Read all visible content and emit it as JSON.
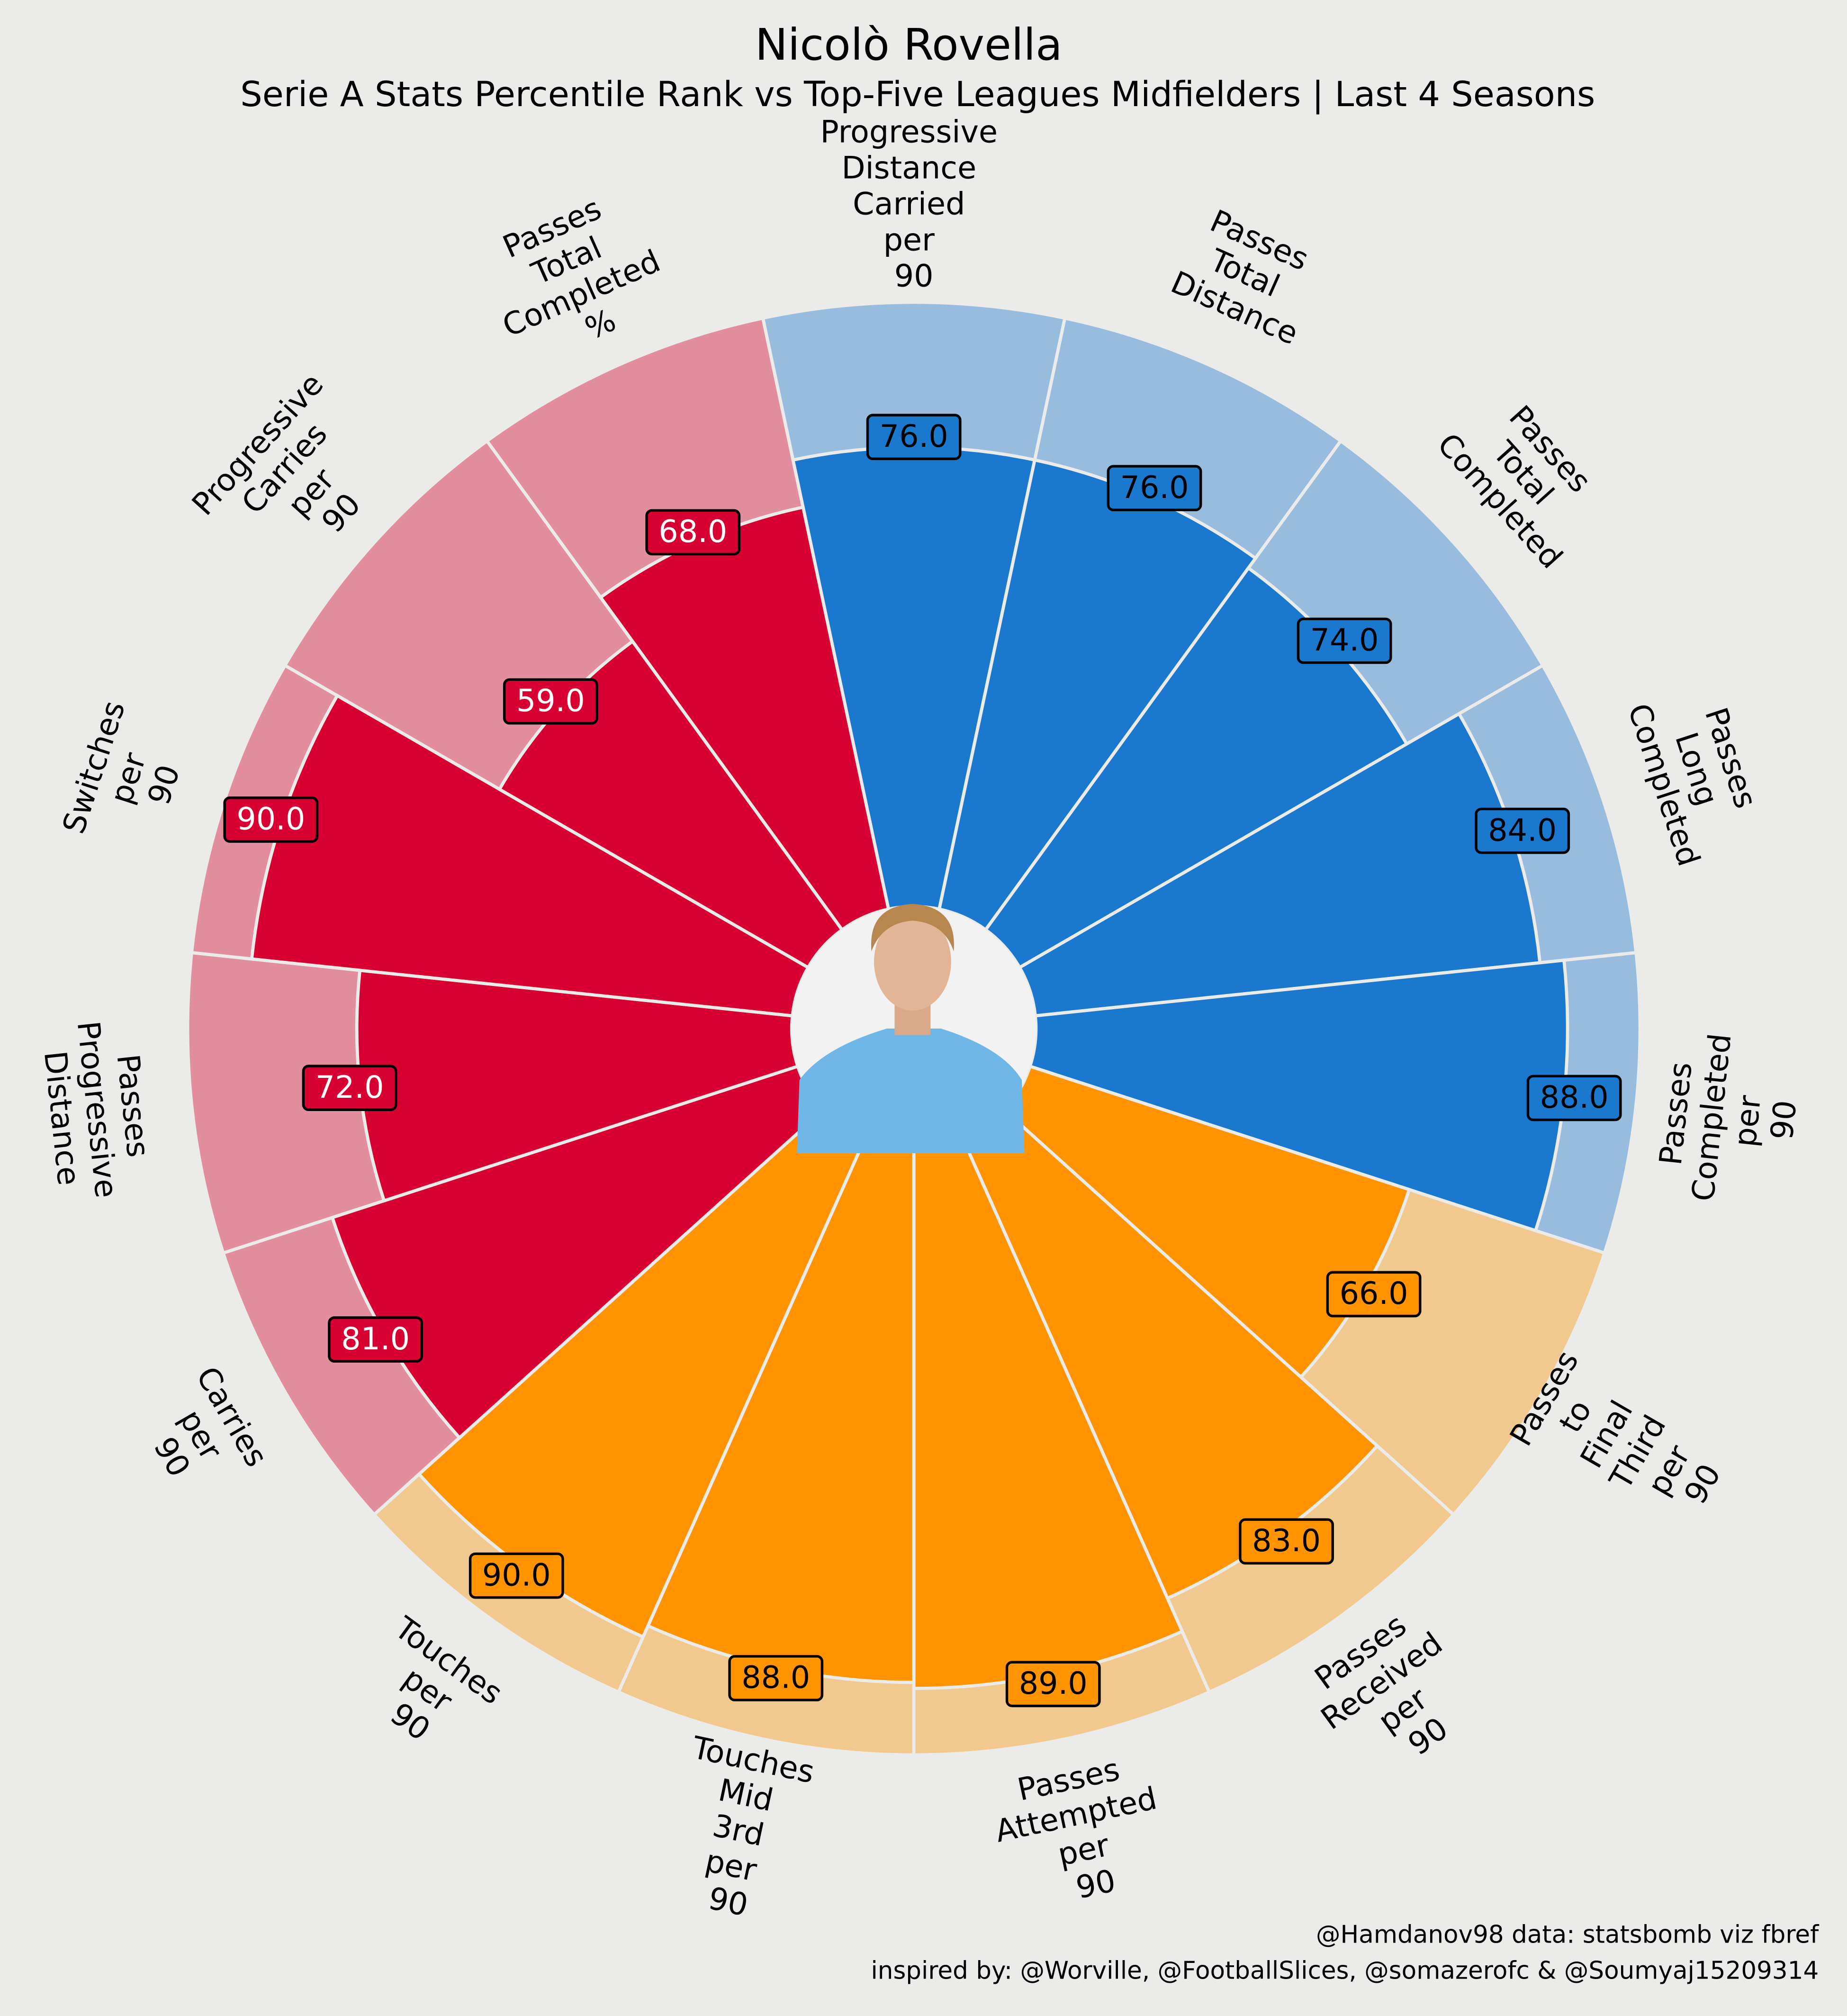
{
  "chart_data": {
    "type": "pizza",
    "title": "Nicolò Rovella",
    "subtitle": "Serie A Stats Percentile Rank vs Top-Five Leagues Midfielders | Last 4 Seasons",
    "categories": [
      "Progressive Distance Carried per 90",
      "Passes Total Distance",
      "Passes Total Completed",
      "Passes Long Completed",
      "Passes Completed per 90",
      "Passes to Final Third per 90",
      "Passes Received per 90",
      "Passes Attempted per 90",
      "Touches Mid 3rd per 90",
      "Touches per 90",
      "Carries per 90",
      "Passes Progressive Distance",
      "Switches per 90",
      "Progressive Carries per 90",
      "Passes Total Completed %"
    ],
    "values": [
      76,
      76,
      74,
      84,
      88,
      66,
      83,
      89,
      88,
      90,
      81,
      72,
      90,
      59,
      68
    ],
    "value_labels": [
      "76.0",
      "76.0",
      "74.0",
      "84.0",
      "88.0",
      "66.0",
      "83.0",
      "89.0",
      "88.0",
      "90.0",
      "81.0",
      "72.0",
      "90.0",
      "59.0",
      "68.0"
    ],
    "colors": [
      "#1a78cf",
      "#1a78cf",
      "#1a78cf",
      "#1a78cf",
      "#1a78cf",
      "#ff9300",
      "#ff9300",
      "#ff9300",
      "#ff9300",
      "#ff9300",
      "#d70232",
      "#d70232",
      "#d70232",
      "#d70232",
      "#d70232"
    ],
    "background_colors": [
      "#97bcde",
      "#97bcde",
      "#97bcde",
      "#97bcde",
      "#97bcde",
      "#f1c88e",
      "#f1c88e",
      "#f1c88e",
      "#f1c88e",
      "#f1c88e",
      "#e38e9e",
      "#e38e9e",
      "#e38e9e",
      "#e38e9e",
      "#e38e9e"
    ],
    "label_text_colors": [
      "#000000",
      "#000000",
      "#000000",
      "#000000",
      "#000000",
      "#000000",
      "#000000",
      "#000000",
      "#000000",
      "#000000",
      "#ffffff",
      "#ffffff",
      "#ffffff",
      "#ffffff",
      "#ffffff"
    ],
    "ylim": [
      0,
      100
    ],
    "annotations": [
      "@Hamdanov98 data: statsbomb viz fbref",
      "inspired by: @Worville, @FootballSlices, @somazerofc & @Soumyaj15209314"
    ]
  }
}
